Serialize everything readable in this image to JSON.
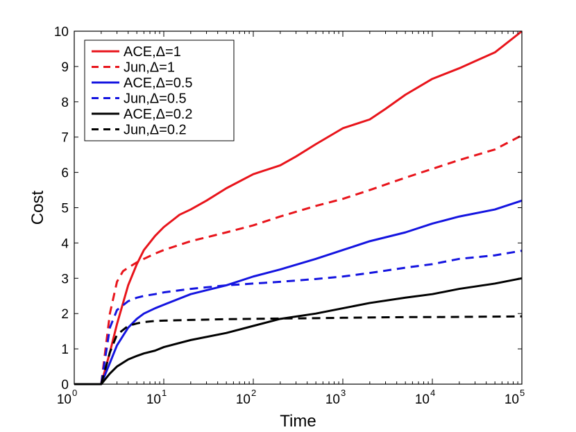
{
  "chart_data": {
    "type": "line",
    "title": "",
    "xlabel": "Time",
    "ylabel": "Cost",
    "xscale": "log",
    "xlim": [
      1,
      100000
    ],
    "ylim": [
      0,
      10
    ],
    "grid": false,
    "legend_position": "top-left",
    "x_ticks": [
      {
        "value": 1,
        "base": "10",
        "exp": "0"
      },
      {
        "value": 10,
        "base": "10",
        "exp": "1"
      },
      {
        "value": 100,
        "base": "10",
        "exp": "2"
      },
      {
        "value": 1000,
        "base": "10",
        "exp": "3"
      },
      {
        "value": 10000,
        "base": "10",
        "exp": "4"
      },
      {
        "value": 100000,
        "base": "10",
        "exp": "5"
      }
    ],
    "y_ticks": [
      {
        "value": 0,
        "label": "0"
      },
      {
        "value": 1,
        "label": "1"
      },
      {
        "value": 2,
        "label": "2"
      },
      {
        "value": 3,
        "label": "3"
      },
      {
        "value": 4,
        "label": "4"
      },
      {
        "value": 5,
        "label": "5"
      },
      {
        "value": 6,
        "label": "6"
      },
      {
        "value": 7,
        "label": "7"
      },
      {
        "value": 8,
        "label": "8"
      },
      {
        "value": 9,
        "label": "9"
      },
      {
        "value": 10,
        "label": "10"
      }
    ],
    "series": [
      {
        "name": "ACE,Δ=1",
        "color": "#e8141b",
        "dash": "solid",
        "x": [
          1,
          2,
          2.5,
          3,
          4,
          5,
          6,
          8,
          10,
          15,
          20,
          30,
          50,
          100,
          200,
          300,
          500,
          1000,
          2000,
          3000,
          5000,
          10000,
          20000,
          30000,
          50000,
          100000
        ],
        "y": [
          0,
          0,
          0.9,
          1.7,
          2.8,
          3.4,
          3.8,
          4.2,
          4.45,
          4.8,
          4.95,
          5.2,
          5.55,
          5.95,
          6.2,
          6.45,
          6.8,
          7.25,
          7.5,
          7.8,
          8.2,
          8.65,
          8.95,
          9.15,
          9.4,
          10.0
        ]
      },
      {
        "name": "Jun,Δ=1",
        "color": "#e8141b",
        "dash": "dashed",
        "x": [
          1,
          2,
          2.5,
          3,
          3.5,
          4,
          5,
          6,
          8,
          10,
          20,
          50,
          100,
          200,
          500,
          1000,
          2000,
          5000,
          10000,
          20000,
          50000,
          100000
        ],
        "y": [
          0,
          0,
          2.0,
          2.9,
          3.2,
          3.3,
          3.45,
          3.55,
          3.7,
          3.8,
          4.05,
          4.3,
          4.5,
          4.75,
          5.05,
          5.25,
          5.5,
          5.85,
          6.1,
          6.35,
          6.65,
          7.05
        ]
      },
      {
        "name": "ACE,Δ=0.5",
        "color": "#1414e0",
        "dash": "solid",
        "x": [
          1,
          2,
          2.5,
          3,
          4,
          5,
          6,
          8,
          10,
          20,
          50,
          100,
          200,
          500,
          1000,
          2000,
          5000,
          10000,
          20000,
          50000,
          100000
        ],
        "y": [
          0,
          0,
          0.6,
          1.1,
          1.6,
          1.85,
          2.0,
          2.15,
          2.25,
          2.55,
          2.8,
          3.05,
          3.25,
          3.55,
          3.8,
          4.05,
          4.3,
          4.55,
          4.75,
          4.95,
          5.2
        ]
      },
      {
        "name": "Jun,Δ=0.5",
        "color": "#1414e0",
        "dash": "dashed",
        "x": [
          1,
          2,
          2.5,
          3,
          4,
          5,
          6,
          8,
          10,
          20,
          50,
          100,
          200,
          500,
          1000,
          2000,
          5000,
          10000,
          20000,
          50000,
          100000
        ],
        "y": [
          0,
          0,
          1.6,
          2.1,
          2.35,
          2.45,
          2.5,
          2.55,
          2.6,
          2.7,
          2.8,
          2.85,
          2.9,
          2.98,
          3.05,
          3.15,
          3.3,
          3.4,
          3.55,
          3.65,
          3.78
        ]
      },
      {
        "name": "ACE,Δ=0.2",
        "color": "#000000",
        "dash": "solid",
        "x": [
          1,
          2,
          2.5,
          3,
          4,
          5,
          6,
          8,
          10,
          20,
          50,
          100,
          200,
          500,
          1000,
          2000,
          5000,
          10000,
          20000,
          50000,
          100000
        ],
        "y": [
          0,
          0,
          0.3,
          0.5,
          0.7,
          0.8,
          0.87,
          0.95,
          1.05,
          1.25,
          1.45,
          1.65,
          1.85,
          2.0,
          2.15,
          2.3,
          2.45,
          2.55,
          2.7,
          2.85,
          3.0
        ]
      },
      {
        "name": "Jun,Δ=0.2",
        "color": "#000000",
        "dash": "dashed",
        "x": [
          1,
          2,
          2.5,
          3,
          4,
          5,
          6,
          8,
          10,
          20,
          50,
          100,
          200,
          500,
          1000,
          5000,
          10000,
          100000
        ],
        "y": [
          0,
          0,
          0.9,
          1.4,
          1.65,
          1.72,
          1.76,
          1.79,
          1.8,
          1.82,
          1.84,
          1.85,
          1.86,
          1.87,
          1.88,
          1.9,
          1.9,
          1.92
        ]
      }
    ]
  }
}
